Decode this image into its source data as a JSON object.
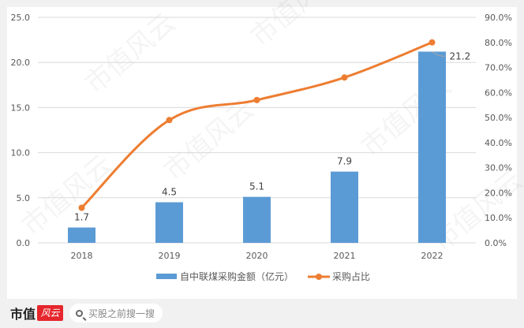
{
  "chart_data": {
    "type": "bar+line",
    "title": "",
    "categories": [
      "2018",
      "2019",
      "2020",
      "2021",
      "2022"
    ],
    "series": [
      {
        "name": "自中联煤采购金额（亿元）",
        "type": "bar",
        "axis": "left",
        "color": "#5b9bd5",
        "values": [
          1.7,
          4.5,
          5.1,
          7.9,
          21.2
        ],
        "labels": [
          "1.7",
          "4.5",
          "5.1",
          "7.9",
          "21.2"
        ]
      },
      {
        "name": "采购占比",
        "type": "line",
        "axis": "right",
        "color": "#ed7d31",
        "values": [
          14,
          49,
          57,
          66,
          80
        ],
        "unit": "%"
      }
    ],
    "left_axis": {
      "ticks": [
        "0.0",
        "5.0",
        "10.0",
        "15.0",
        "20.0",
        "25.0"
      ],
      "ylim": [
        0,
        25
      ]
    },
    "right_axis": {
      "ticks": [
        "0.0%",
        "10.0%",
        "20.0%",
        "30.0%",
        "40.0%",
        "50.0%",
        "60.0%",
        "70.0%",
        "80.0%",
        "90.0%"
      ],
      "ylim": [
        0,
        90
      ]
    },
    "legend": {
      "position": "bottom",
      "items": [
        "自中联煤采购金额（亿元）",
        "采购占比"
      ]
    },
    "grid": true,
    "xlabel": "",
    "ylabel": ""
  },
  "footer": {
    "brand_text": "市值",
    "brand_logo": "风云",
    "search_placeholder": "买股之前搜一搜",
    "search_icon": "search-icon"
  },
  "watermark": "市值风云"
}
